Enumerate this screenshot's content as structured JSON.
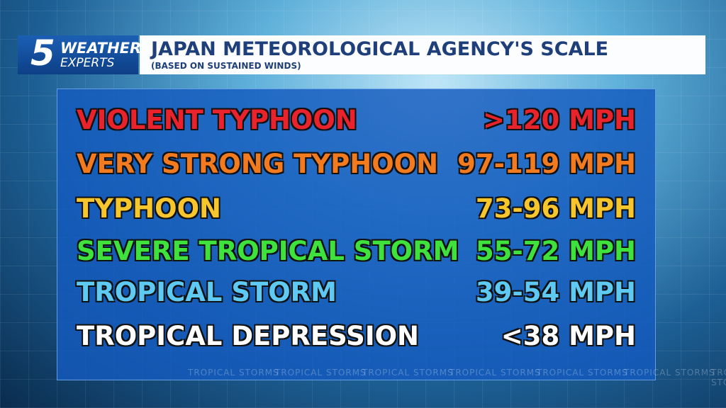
{
  "header": {
    "logo": {
      "number": "5",
      "line1": "WEATHER",
      "line2": "EXPERTS"
    },
    "title": "JAPAN METEOROLOGICAL AGENCY'S SCALE",
    "subtitle": "(BASED ON SUSTAINED WINDS)"
  },
  "table": {
    "rows": [
      {
        "label": "VIOLENT TYPHOON",
        "range": ">120 MPH",
        "color": "#e8232b"
      },
      {
        "label": "VERY STRONG TYPHOON",
        "range": "97-119 MPH",
        "color": "#f27a1f"
      },
      {
        "label": "TYPHOON",
        "range": "73-96 MPH",
        "color": "#f6c62c"
      },
      {
        "label": "SEVERE TROPICAL STORM",
        "range": "55-72 MPH",
        "color": "#3fe13c"
      },
      {
        "label": "TROPICAL STORM",
        "range": "39-54 MPH",
        "color": "#5ec9f2"
      },
      {
        "label": "TROPICAL DEPRESSION",
        "range": "<38 MPH",
        "color": "#ffffff"
      }
    ]
  },
  "watermark": "TROPICAL STORMS"
}
